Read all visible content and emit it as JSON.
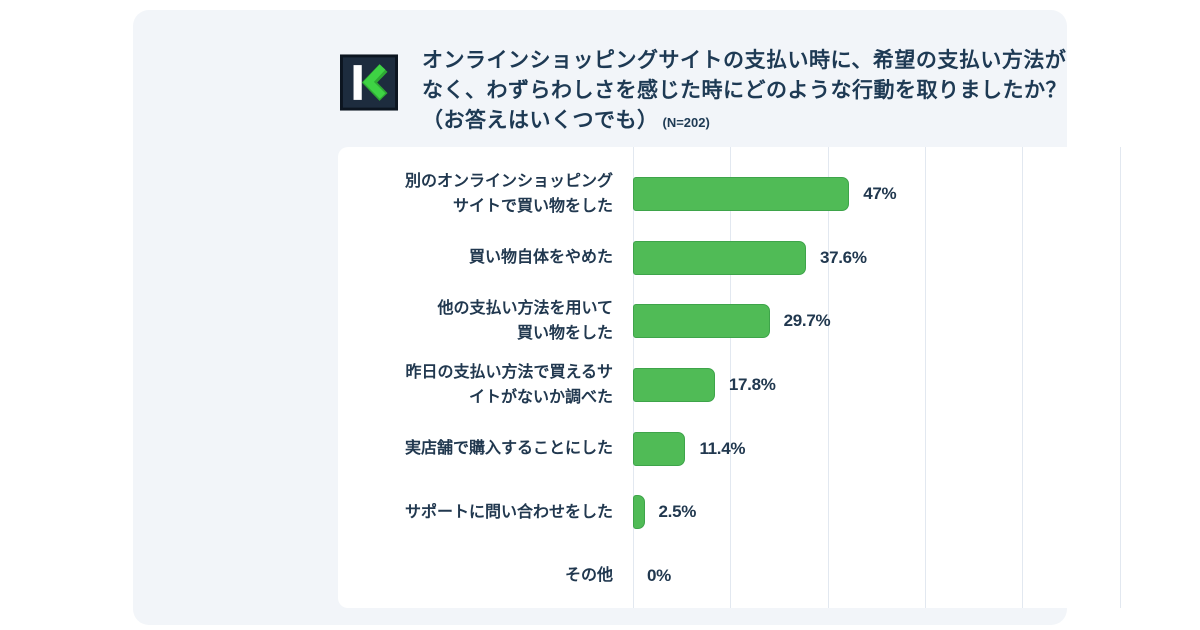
{
  "brand": {
    "logo": "komoju-k-logo",
    "logo_colors": {
      "square": "#1d2c3e",
      "border": "#0c1520",
      "bar": "#ffffff",
      "chevron": "#3ed344",
      "chevron_shadow": "#2ea834"
    }
  },
  "header": {
    "title_line1": "オンラインショッピングサイトの支払い時に、希望の支払い方法が",
    "title_line2": "なく、わずらわしさを感じた時にどのような行動を取りましたか？",
    "title_line3": "（お答えはいくつでも）",
    "sample_size": "(N=202)"
  },
  "chart_data": {
    "type": "bar",
    "orientation": "horizontal",
    "title": "オンラインショッピングサイトの支払い時に、希望の支払い方法がなく、わずらわしさを感じた時にどのような行動を取りましたか？（お答えはいくつでも）",
    "sample_note": "(N=202)",
    "categories": [
      "別のオンラインショッピングサイトで買い物をした",
      "買い物自体をやめた",
      "他の支払い方法を用いて買い物をした",
      "昨日の支払い方法で買えるサイトがないか調べた",
      "実店舗で購入することにした",
      "サポートに問い合わせをした",
      "その他"
    ],
    "categories_wrapped": [
      [
        "別のオンラインショッピング",
        "サイトで買い物をした"
      ],
      [
        "買い物自体をやめた"
      ],
      [
        "他の支払い方法を用いて",
        "買い物をした"
      ],
      [
        "昨日の支払い方法で買えるサ",
        "イトがないか調べた"
      ],
      [
        "実店舗で購入することにした"
      ],
      [
        "サポートに問い合わせをした"
      ],
      [
        "その他"
      ]
    ],
    "values": [
      47,
      37.6,
      29.7,
      17.8,
      11.4,
      2.5,
      0
    ],
    "value_labels": [
      "47%",
      "37.6%",
      "29.7%",
      "17.8%",
      "11.4%",
      "2.5%",
      "0%"
    ],
    "unit": "%",
    "xlim": [
      0,
      115
    ],
    "grid": "vertical-only",
    "legend": "none",
    "bar_color": "#50bb56",
    "bar_border_color": "#3ea44a",
    "text_color": "#21384f",
    "panel_background": "#ffffff",
    "card_background": "#f2f5f9",
    "gridline_color": "#e2e8f0"
  }
}
